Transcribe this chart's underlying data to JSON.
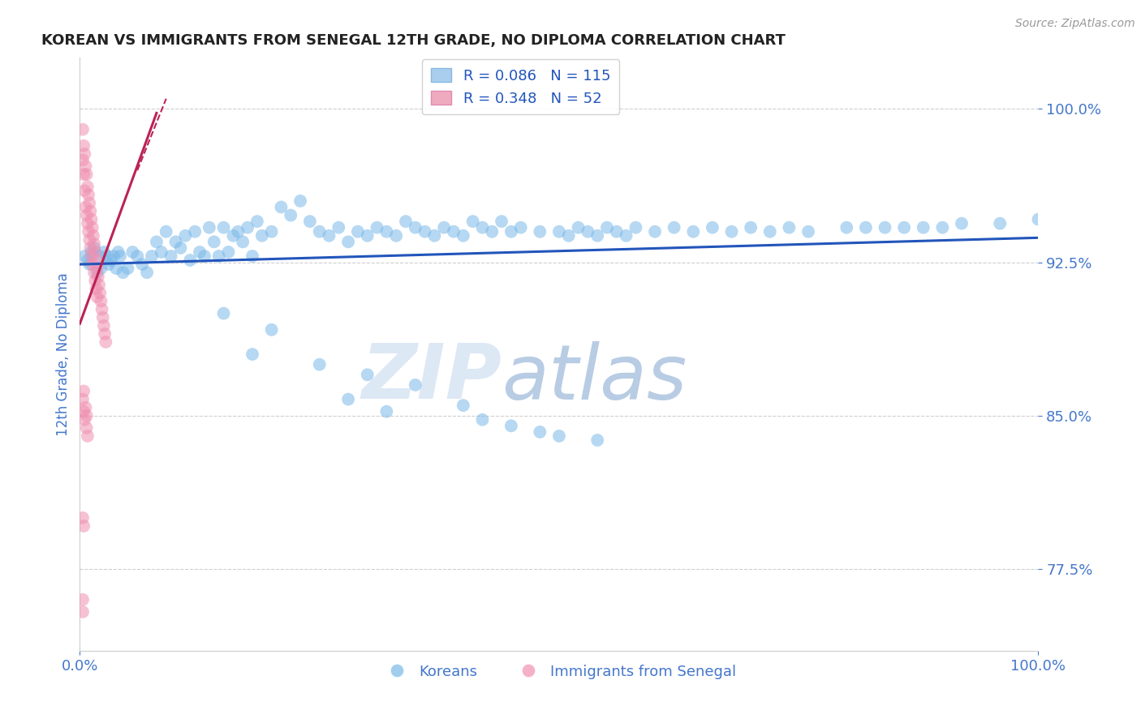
{
  "title": "KOREAN VS IMMIGRANTS FROM SENEGAL 12TH GRADE, NO DIPLOMA CORRELATION CHART",
  "source": "Source: ZipAtlas.com",
  "ylabel": "12th Grade, No Diploma",
  "x_min": 0.0,
  "x_max": 1.0,
  "y_min": 0.735,
  "y_max": 1.025,
  "yticks": [
    0.775,
    0.85,
    0.925,
    1.0
  ],
  "ytick_labels": [
    "77.5%",
    "85.0%",
    "92.5%",
    "100.0%"
  ],
  "xticks": [
    0.0,
    1.0
  ],
  "xtick_labels": [
    "0.0%",
    "100.0%"
  ],
  "legend_items": [
    {
      "label": "R = 0.086   N = 115",
      "color": "#aacfee"
    },
    {
      "label": "R = 0.348   N = 52",
      "color": "#f0aac0"
    }
  ],
  "legend_labels_bottom": [
    "Koreans",
    "Immigrants from Senegal"
  ],
  "blue_color": "#7ab8e8",
  "pink_color": "#f090b0",
  "blue_line_color": "#2255bb",
  "pink_line_color": "#bb2255",
  "grid_color": "#bbbbbb",
  "title_color": "#222222",
  "axis_label_color": "#4477cc",
  "tick_color": "#4477cc",
  "watermark_color": "#dde8f5",
  "blue_scatter_x": [
    0.005,
    0.008,
    0.01,
    0.012,
    0.015,
    0.018,
    0.02,
    0.022,
    0.025,
    0.028,
    0.03,
    0.032,
    0.035,
    0.038,
    0.04,
    0.042,
    0.045,
    0.05,
    0.055,
    0.06,
    0.065,
    0.07,
    0.075,
    0.08,
    0.085,
    0.09,
    0.095,
    0.1,
    0.105,
    0.11,
    0.115,
    0.12,
    0.125,
    0.13,
    0.135,
    0.14,
    0.145,
    0.15,
    0.155,
    0.16,
    0.165,
    0.17,
    0.175,
    0.18,
    0.185,
    0.19,
    0.2,
    0.21,
    0.22,
    0.23,
    0.24,
    0.25,
    0.26,
    0.27,
    0.28,
    0.29,
    0.3,
    0.31,
    0.32,
    0.33,
    0.34,
    0.35,
    0.36,
    0.37,
    0.38,
    0.39,
    0.4,
    0.41,
    0.42,
    0.43,
    0.44,
    0.45,
    0.46,
    0.48,
    0.5,
    0.51,
    0.52,
    0.53,
    0.54,
    0.55,
    0.56,
    0.57,
    0.58,
    0.6,
    0.62,
    0.64,
    0.66,
    0.68,
    0.7,
    0.72,
    0.74,
    0.76,
    0.8,
    0.82,
    0.84,
    0.86,
    0.88,
    0.9,
    0.92,
    0.96,
    1.0,
    0.15,
    0.2,
    0.18,
    0.25,
    0.3,
    0.35,
    0.28,
    0.4,
    0.32,
    0.42,
    0.45,
    0.48,
    0.5,
    0.54
  ],
  "blue_scatter_y": [
    0.928,
    0.926,
    0.924,
    0.93,
    0.932,
    0.92,
    0.928,
    0.922,
    0.93,
    0.928,
    0.924,
    0.926,
    0.928,
    0.922,
    0.93,
    0.928,
    0.92,
    0.922,
    0.93,
    0.928,
    0.924,
    0.92,
    0.928,
    0.935,
    0.93,
    0.94,
    0.928,
    0.935,
    0.932,
    0.938,
    0.926,
    0.94,
    0.93,
    0.928,
    0.942,
    0.935,
    0.928,
    0.942,
    0.93,
    0.938,
    0.94,
    0.935,
    0.942,
    0.928,
    0.945,
    0.938,
    0.94,
    0.952,
    0.948,
    0.955,
    0.945,
    0.94,
    0.938,
    0.942,
    0.935,
    0.94,
    0.938,
    0.942,
    0.94,
    0.938,
    0.945,
    0.942,
    0.94,
    0.938,
    0.942,
    0.94,
    0.938,
    0.945,
    0.942,
    0.94,
    0.945,
    0.94,
    0.942,
    0.94,
    0.94,
    0.938,
    0.942,
    0.94,
    0.938,
    0.942,
    0.94,
    0.938,
    0.942,
    0.94,
    0.942,
    0.94,
    0.942,
    0.94,
    0.942,
    0.94,
    0.942,
    0.94,
    0.942,
    0.942,
    0.942,
    0.942,
    0.942,
    0.942,
    0.944,
    0.944,
    0.946,
    0.9,
    0.892,
    0.88,
    0.875,
    0.87,
    0.865,
    0.858,
    0.855,
    0.852,
    0.848,
    0.845,
    0.842,
    0.84,
    0.838
  ],
  "pink_scatter_x": [
    0.003,
    0.003,
    0.004,
    0.004,
    0.005,
    0.005,
    0.006,
    0.006,
    0.007,
    0.007,
    0.008,
    0.008,
    0.009,
    0.009,
    0.01,
    0.01,
    0.011,
    0.011,
    0.012,
    0.012,
    0.013,
    0.013,
    0.014,
    0.015,
    0.015,
    0.016,
    0.016,
    0.017,
    0.017,
    0.018,
    0.018,
    0.019,
    0.02,
    0.021,
    0.022,
    0.023,
    0.024,
    0.025,
    0.026,
    0.027,
    0.003,
    0.004,
    0.004,
    0.005,
    0.006,
    0.007,
    0.007,
    0.008,
    0.003,
    0.004,
    0.003,
    0.003
  ],
  "pink_scatter_y": [
    0.99,
    0.975,
    0.982,
    0.968,
    0.978,
    0.96,
    0.972,
    0.952,
    0.968,
    0.948,
    0.962,
    0.944,
    0.958,
    0.94,
    0.954,
    0.936,
    0.95,
    0.932,
    0.946,
    0.928,
    0.942,
    0.924,
    0.938,
    0.934,
    0.92,
    0.93,
    0.916,
    0.926,
    0.912,
    0.922,
    0.908,
    0.918,
    0.914,
    0.91,
    0.906,
    0.902,
    0.898,
    0.894,
    0.89,
    0.886,
    0.858,
    0.852,
    0.862,
    0.848,
    0.854,
    0.844,
    0.85,
    0.84,
    0.8,
    0.796,
    0.76,
    0.754
  ],
  "pink_line_x": [
    0.0,
    0.08
  ],
  "pink_line_y_start": 0.895,
  "pink_line_y_end": 0.998,
  "blue_line_x": [
    0.0,
    1.0
  ],
  "blue_line_y_start": 0.924,
  "blue_line_y_end": 0.937
}
